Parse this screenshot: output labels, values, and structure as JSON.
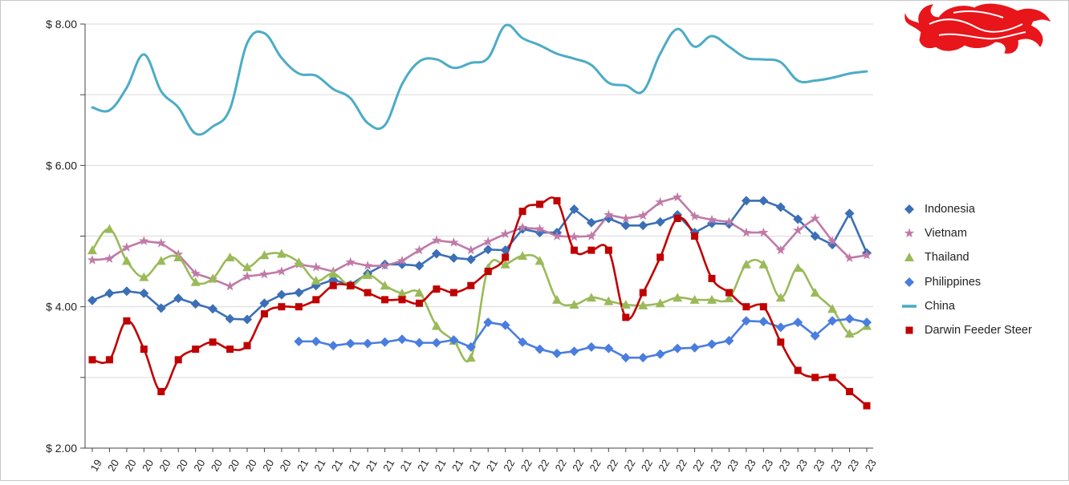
{
  "chart_data": {
    "type": "line",
    "title": "",
    "xlabel": "",
    "ylabel": "",
    "ylim": [
      2,
      8
    ],
    "y_ticks": [
      {
        "value": 8,
        "label": "$ 8.00"
      },
      {
        "value": 6,
        "label": "$ 6.00"
      },
      {
        "value": 4,
        "label": "$ 4.00"
      },
      {
        "value": 2,
        "label": "$ 2.00"
      }
    ],
    "grid": true,
    "legend_position": "right",
    "x_count": 46,
    "x_tick_labels": [
      "19",
      "20",
      "20",
      "20",
      "20",
      "20",
      "20",
      "20",
      "20",
      "20",
      "20",
      "20",
      "21",
      "21",
      "21",
      "21",
      "21",
      "21",
      "21",
      "21",
      "21",
      "21",
      "21",
      "21",
      "22",
      "22",
      "22",
      "22",
      "22",
      "22",
      "22",
      "22",
      "22",
      "22",
      "22",
      "22",
      "23",
      "23",
      "23",
      "23",
      "23",
      "23",
      "23",
      "23",
      "23",
      "23"
    ],
    "series": [
      {
        "name": "Indonesia",
        "color": "#3b6fb6",
        "marker": "diamond",
        "smooth": false,
        "values": [
          4.09,
          4.19,
          4.22,
          4.19,
          3.98,
          4.12,
          4.04,
          3.97,
          3.83,
          3.82,
          4.05,
          4.17,
          4.2,
          4.3,
          4.38,
          4.31,
          4.47,
          4.6,
          4.6,
          4.58,
          4.75,
          4.69,
          4.67,
          4.81,
          4.8,
          5.1,
          5.05,
          5.05,
          5.38,
          5.19,
          5.25,
          5.15,
          5.15,
          5.2,
          5.3,
          5.05,
          5.18,
          5.17,
          5.5,
          5.5,
          5.41,
          5.24,
          5.0,
          4.88,
          5.32,
          4.76
        ]
      },
      {
        "name": "Vietnam",
        "color": "#c07aa8",
        "marker": "star",
        "smooth": false,
        "values": [
          4.66,
          4.68,
          4.84,
          4.93,
          4.9,
          4.74,
          4.47,
          4.39,
          4.29,
          4.43,
          4.46,
          4.5,
          4.6,
          4.56,
          4.5,
          4.63,
          4.58,
          4.58,
          4.65,
          4.8,
          4.94,
          4.91,
          4.8,
          4.92,
          5.03,
          5.12,
          5.1,
          5.0,
          4.99,
          5.0,
          5.3,
          5.25,
          5.29,
          5.48,
          5.55,
          5.28,
          5.23,
          5.2,
          5.05,
          5.05,
          4.8,
          5.08,
          5.25,
          4.93,
          4.69,
          4.73
        ]
      },
      {
        "name": "Thailand",
        "color": "#9aba59",
        "marker": "triangle",
        "smooth": true,
        "values": [
          4.8,
          5.1,
          4.65,
          4.42,
          4.65,
          4.7,
          4.35,
          4.4,
          4.7,
          4.56,
          4.73,
          4.75,
          4.63,
          4.37,
          4.47,
          4.3,
          4.45,
          4.3,
          4.19,
          4.2,
          3.73,
          3.52,
          3.28,
          4.55,
          4.6,
          4.72,
          4.65,
          4.1,
          4.03,
          4.13,
          4.08,
          4.03,
          4.02,
          4.05,
          4.13,
          4.1,
          4.1,
          4.12,
          4.6,
          4.6,
          4.13,
          4.55,
          4.2,
          3.97,
          3.62,
          3.73
        ]
      },
      {
        "name": "Philippines",
        "color": "#4a7de0",
        "marker": "diamond",
        "smooth": false,
        "values": [
          null,
          null,
          null,
          null,
          null,
          null,
          null,
          null,
          null,
          null,
          null,
          null,
          3.51,
          3.51,
          3.45,
          3.48,
          3.48,
          3.5,
          3.54,
          3.49,
          3.49,
          3.53,
          3.43,
          3.78,
          3.74,
          3.5,
          3.4,
          3.34,
          3.37,
          3.43,
          3.41,
          3.28,
          3.28,
          3.33,
          3.41,
          3.42,
          3.47,
          3.52,
          3.8,
          3.79,
          3.71,
          3.78,
          3.59,
          3.8,
          3.83,
          3.78
        ]
      },
      {
        "name": "China",
        "color": "#4bacc6",
        "marker": "dash",
        "smooth": true,
        "values": [
          6.82,
          6.78,
          7.1,
          7.57,
          7.05,
          6.82,
          6.45,
          6.55,
          6.8,
          7.73,
          7.87,
          7.52,
          7.3,
          7.27,
          7.08,
          6.95,
          6.6,
          6.57,
          7.15,
          7.47,
          7.5,
          7.38,
          7.45,
          7.52,
          7.98,
          7.8,
          7.7,
          7.58,
          7.51,
          7.42,
          7.17,
          7.13,
          7.05,
          7.58,
          7.93,
          7.68,
          7.83,
          7.68,
          7.52,
          7.5,
          7.46,
          7.2,
          7.2,
          7.24,
          7.3,
          7.33
        ]
      },
      {
        "name": "Darwin Feeder Steer",
        "color": "#c00000",
        "marker": "square",
        "smooth": true,
        "values": [
          3.25,
          3.25,
          3.8,
          3.4,
          2.8,
          3.25,
          3.4,
          3.5,
          3.4,
          3.45,
          3.9,
          4.0,
          4.0,
          4.1,
          4.3,
          4.3,
          4.2,
          4.1,
          4.1,
          4.05,
          4.25,
          4.2,
          4.3,
          4.5,
          4.7,
          5.35,
          5.45,
          5.5,
          4.8,
          4.8,
          4.8,
          3.85,
          4.2,
          4.7,
          5.25,
          5.0,
          4.4,
          4.2,
          4.0,
          4.0,
          3.5,
          3.1,
          3.0,
          3.0,
          2.8,
          2.6
        ]
      }
    ]
  }
}
